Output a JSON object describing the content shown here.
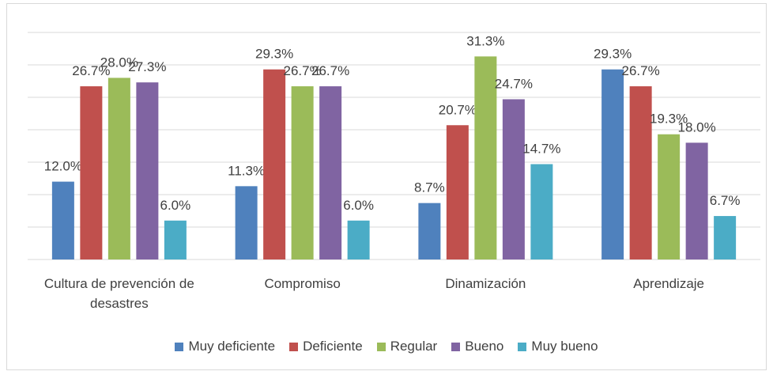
{
  "chart_data": {
    "type": "bar",
    "categories": [
      "Cultura de prevención de desastres",
      "Compromiso",
      "Dinamización",
      "Aprendizaje"
    ],
    "series": [
      {
        "name": "Muy deficiente",
        "color": "#4f81bd",
        "values": [
          12.0,
          11.3,
          8.7,
          29.3
        ],
        "value_labels": [
          "12.0%",
          "11.3%",
          "8.7%",
          "29.3%"
        ]
      },
      {
        "name": "Deficiente",
        "color": "#c0504d",
        "values": [
          26.7,
          29.3,
          20.7,
          26.7
        ],
        "value_labels": [
          "26.7%",
          "29.3%",
          "20.7%",
          "26.7%"
        ]
      },
      {
        "name": "Regular",
        "color": "#9bbb59",
        "values": [
          28.0,
          26.7,
          31.3,
          19.3
        ],
        "value_labels": [
          "28.0%",
          "26.7%",
          "31.3%",
          "19.3%"
        ]
      },
      {
        "name": "Bueno",
        "color": "#8064a2",
        "values": [
          27.3,
          26.7,
          24.7,
          18.0
        ],
        "value_labels": [
          "27.3%",
          "26.7%",
          "24.7%",
          "18.0%"
        ]
      },
      {
        "name": "Muy bueno",
        "color": "#4bacc6",
        "values": [
          6.0,
          6.0,
          14.7,
          6.7
        ],
        "value_labels": [
          "6.0%",
          "6.0%",
          "14.7%",
          "6.7%"
        ]
      }
    ],
    "ylim": [
      0,
      35
    ],
    "yticks": [
      0,
      5,
      10,
      15,
      20,
      25,
      30,
      35
    ],
    "grid": true,
    "legend": "bottom"
  }
}
